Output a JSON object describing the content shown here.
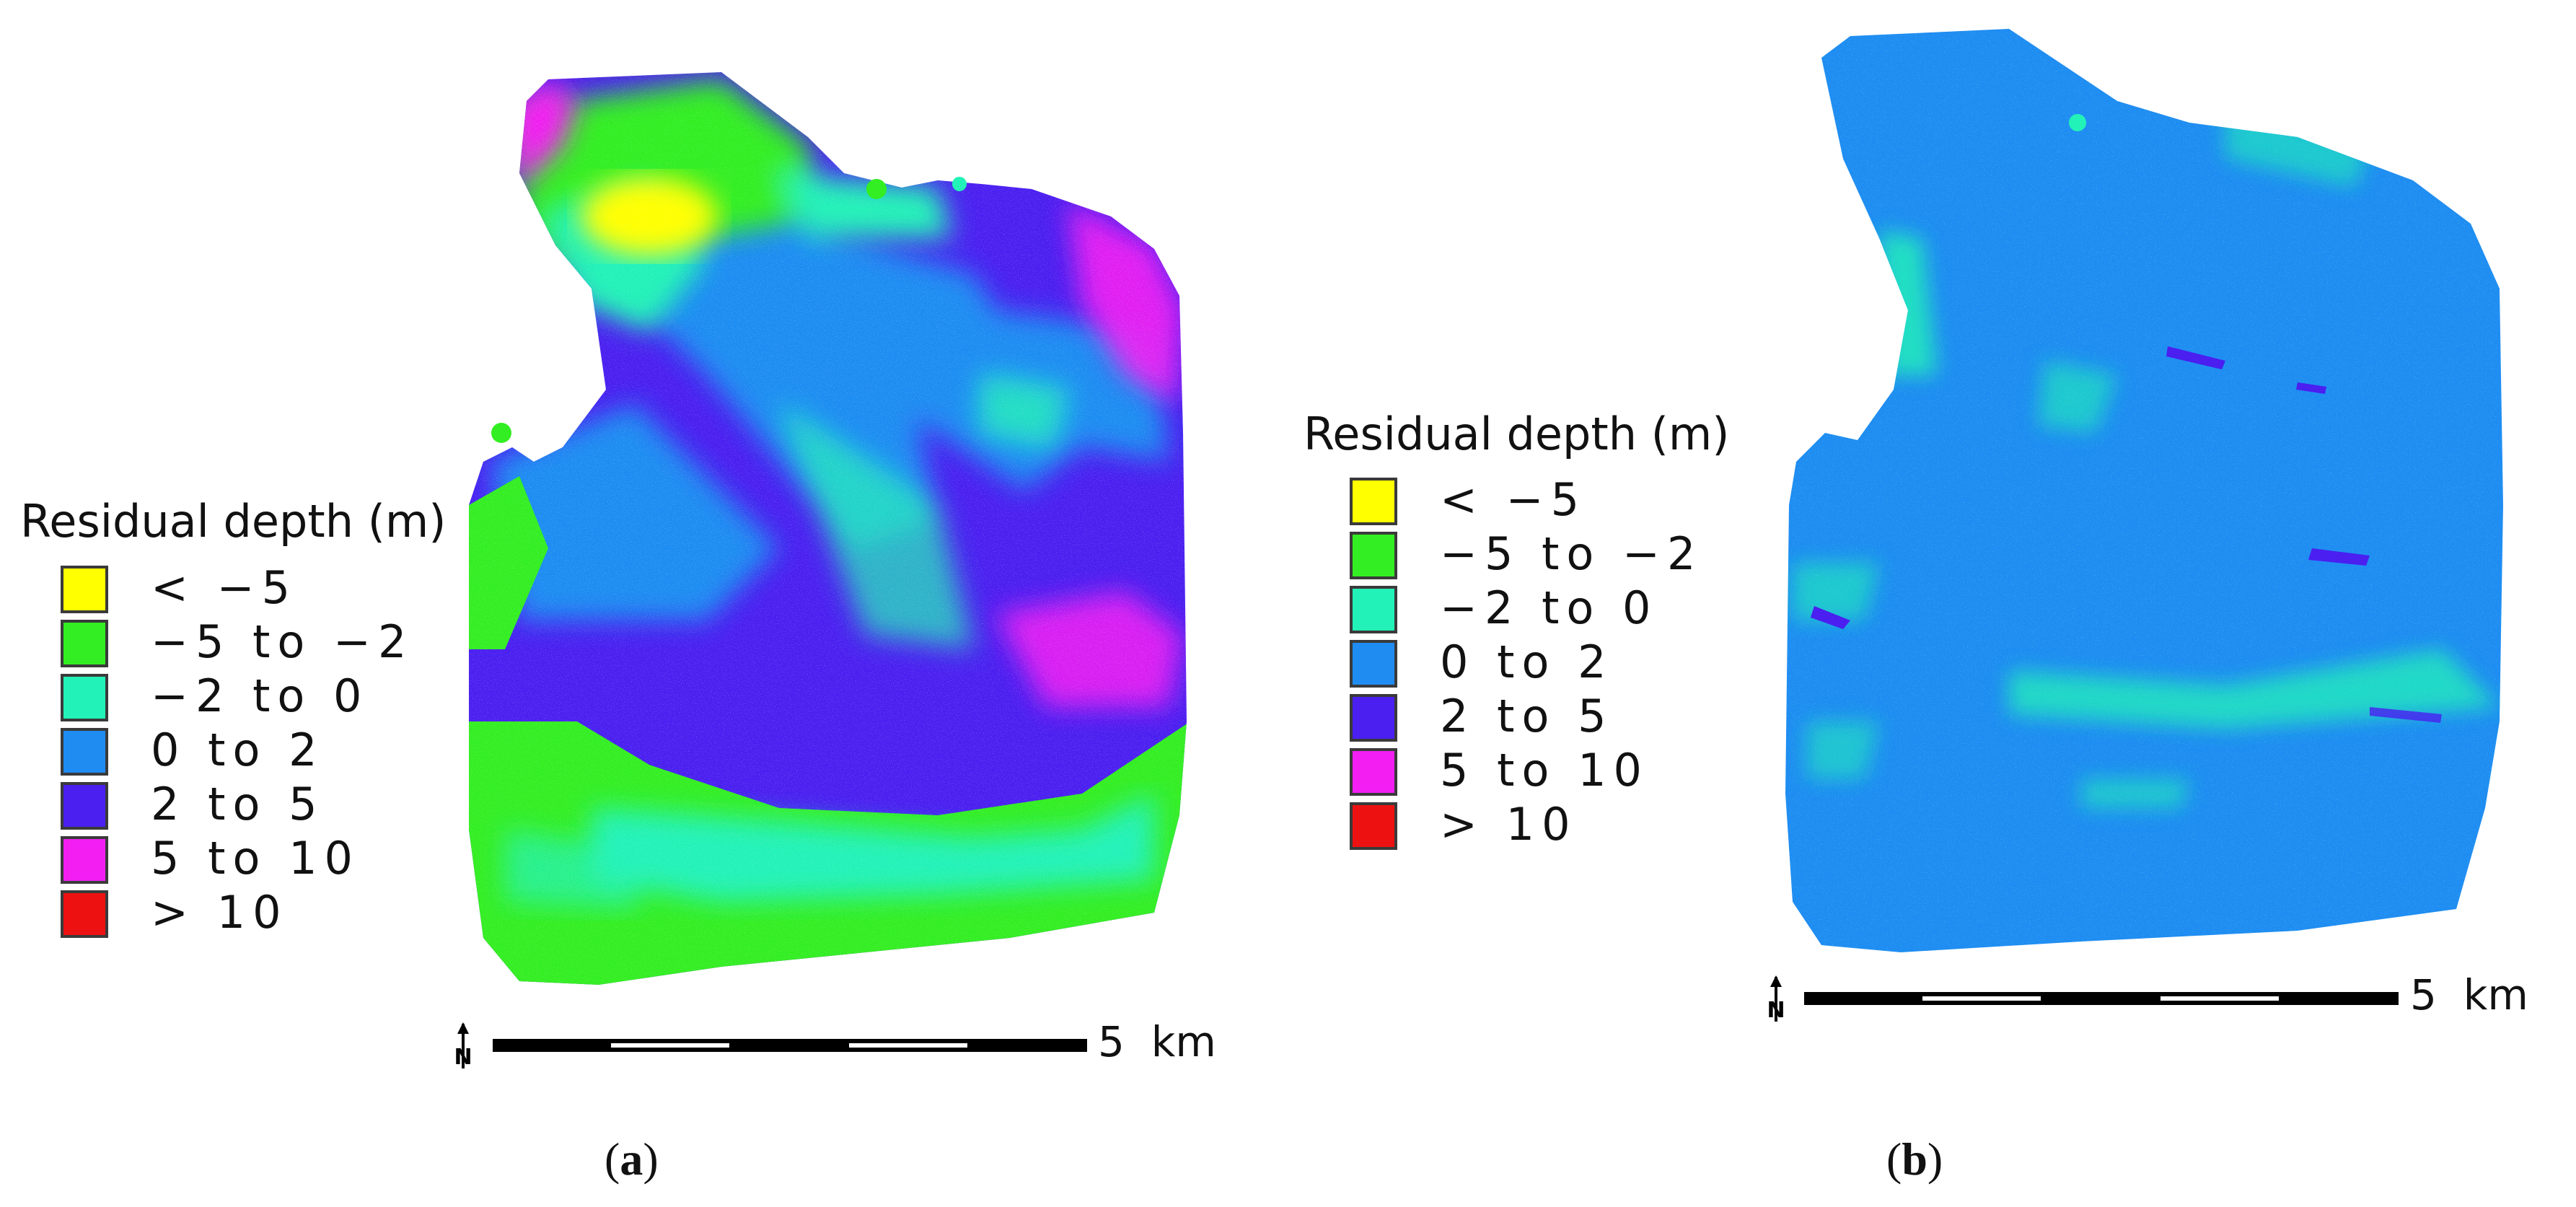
{
  "colors": {
    "lt_m5": "#ffff00",
    "m5_m2": "#33ee22",
    "m2_0": "#22f2b8",
    "0_2": "#1f8cf2",
    "2_5": "#4a1ff0",
    "5_10": "#f21ef2",
    "gt_10": "#ee1111"
  },
  "legend": {
    "title": "Residual depth (m)",
    "items": [
      {
        "label": "< −5",
        "color": "#ffff00"
      },
      {
        "label": "−5 to −2",
        "color": "#33ee22"
      },
      {
        "label": "−2 to 0",
        "color": "#22f2b8"
      },
      {
        "label": "0 to 2",
        "color": "#1f8cf2"
      },
      {
        "label": "2 to 5",
        "color": "#4a1ff0"
      },
      {
        "label": "5 to 10",
        "color": "#f21ef2"
      },
      {
        "label": "> 10",
        "color": "#ee1111"
      }
    ]
  },
  "scale": {
    "label": "5  km",
    "north_symbol": "N"
  },
  "panels": [
    {
      "id": "a",
      "paren_open": "(",
      "letter": "a",
      "paren_close": ")"
    },
    {
      "id": "b",
      "paren_open": "(",
      "letter": "b",
      "paren_close": ")"
    }
  ]
}
